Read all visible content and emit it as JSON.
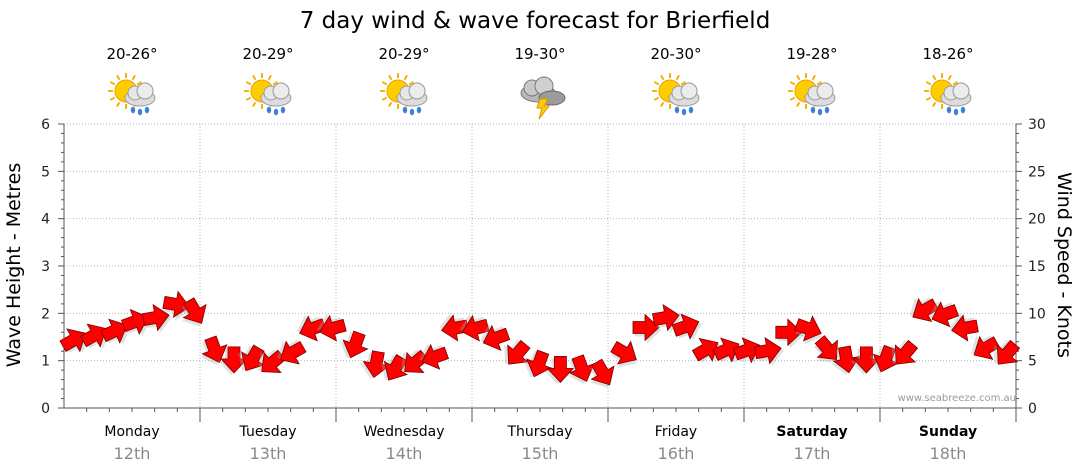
{
  "chart_data": {
    "type": "line",
    "title": "7 day wind & wave forecast for Brierfield",
    "y_left_label": "Wave Height - Metres",
    "y_right_label": "Wind Speed - Knots",
    "y_left_range": [
      0,
      6
    ],
    "y_right_range": [
      0,
      30
    ],
    "y_left_ticks": [
      "0",
      "1",
      "2",
      "3",
      "4",
      "5",
      "6"
    ],
    "y_right_ticks": [
      "0",
      "5",
      "10",
      "15",
      "20",
      "25",
      "30"
    ],
    "grid": true,
    "days": [
      {
        "name": "Monday",
        "date": "12th",
        "temp": "20-26°",
        "icon": "sun-cloud-rain-icon",
        "bold": false
      },
      {
        "name": "Tuesday",
        "date": "13th",
        "temp": "20-29°",
        "icon": "sun-cloud-rain-icon",
        "bold": false
      },
      {
        "name": "Wednesday",
        "date": "14th",
        "temp": "20-29°",
        "icon": "sun-cloud-rain-icon",
        "bold": false
      },
      {
        "name": "Thursday",
        "date": "15th",
        "temp": "19-30°",
        "icon": "storm-cloud-icon",
        "bold": false
      },
      {
        "name": "Friday",
        "date": "16th",
        "temp": "20-30°",
        "icon": "sun-cloud-rain-icon",
        "bold": false
      },
      {
        "name": "Saturday",
        "date": "17th",
        "temp": "19-28°",
        "icon": "sun-cloud-rain-icon",
        "bold": true
      },
      {
        "name": "Sunday",
        "date": "18th",
        "temp": "18-26°",
        "icon": "sun-cloud-rain-icon",
        "bold": true
      }
    ],
    "series": [
      {
        "name": "Wind Speed - Knots",
        "axis": "right",
        "color": "#ff0000",
        "marker": "wind-direction-arrow",
        "x_day": [
          0.05,
          0.2,
          0.35,
          0.5,
          0.65,
          0.8,
          0.95,
          1.1,
          1.25,
          1.4,
          1.55,
          1.7,
          1.85,
          2.0,
          2.15,
          2.3,
          2.45,
          2.6,
          2.75,
          2.9,
          3.05,
          3.2,
          3.35,
          3.5,
          3.65,
          3.8,
          3.95,
          4.1,
          4.25,
          4.4,
          4.55,
          4.7,
          4.85,
          5.0,
          5.15,
          5.3,
          5.45,
          5.6,
          5.75,
          5.9,
          6.05,
          6.2,
          6.35,
          6.5,
          6.65,
          6.8,
          6.95
        ],
        "values": [
          7,
          7.5,
          8,
          9,
          9.5,
          11,
          10.5,
          6.5,
          5.5,
          5.5,
          5,
          6,
          8.5,
          8.5,
          7,
          5,
          4.5,
          5,
          5.5,
          8.5,
          8.5,
          7.5,
          6,
          5,
          4.5,
          4.5,
          4,
          6,
          8.5,
          9.5,
          8.5,
          6,
          6,
          6,
          6,
          8,
          8.5,
          6.5,
          5.5,
          5.5,
          5.5,
          6,
          10.5,
          10,
          8.5,
          6.5,
          6
        ],
        "direction_deg": [
          60,
          60,
          65,
          70,
          80,
          100,
          150,
          160,
          180,
          210,
          230,
          240,
          250,
          255,
          200,
          190,
          210,
          230,
          250,
          260,
          255,
          250,
          220,
          200,
          180,
          160,
          150,
          120,
          90,
          80,
          70,
          60,
          65,
          70,
          80,
          90,
          110,
          140,
          170,
          180,
          200,
          220,
          240,
          250,
          260,
          240,
          220
        ]
      }
    ]
  },
  "credit": "www.seabreeze.com.au"
}
